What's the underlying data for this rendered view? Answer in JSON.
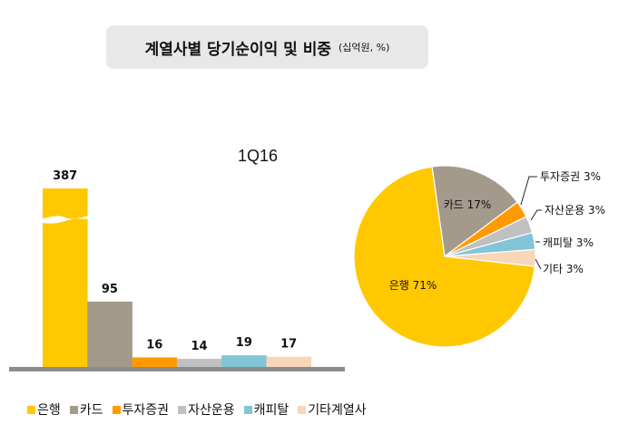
{
  "title": "계열사별 당기순이익 및 비중",
  "unit": "(십억원, %)",
  "period": "1Q16",
  "chart_data": [
    {
      "type": "bar",
      "categories": [
        "은행",
        "카드",
        "투자증권",
        "자산운용",
        "캐피탈",
        "기타계열사"
      ],
      "values": [
        387,
        95,
        16,
        14,
        19,
        17
      ],
      "data_labels": [
        "387",
        "95",
        "16",
        "14",
        "19",
        "17"
      ],
      "colors": [
        "#ffc800",
        "#a39a8b",
        "#ff9a00",
        "#c0c0c0",
        "#82c4d8",
        "#f8d6b8"
      ],
      "axis_broken_bar": "은행",
      "legend": "bottom",
      "grid": false
    },
    {
      "type": "pie",
      "categories": [
        "카드",
        "투자증권",
        "자산운용",
        "캐피탈",
        "기타",
        "은행"
      ],
      "values": [
        17,
        3,
        3,
        3,
        3,
        71
      ],
      "labels": [
        "카드 17%",
        "투자증권 3%",
        "자산운용 3%",
        "캐피탈 3%",
        "기타 3%",
        "은행 71%"
      ],
      "colors": [
        "#a39a8b",
        "#ff9a00",
        "#c0c0c0",
        "#82c4d8",
        "#f8d6b8",
        "#ffc800"
      ]
    }
  ]
}
